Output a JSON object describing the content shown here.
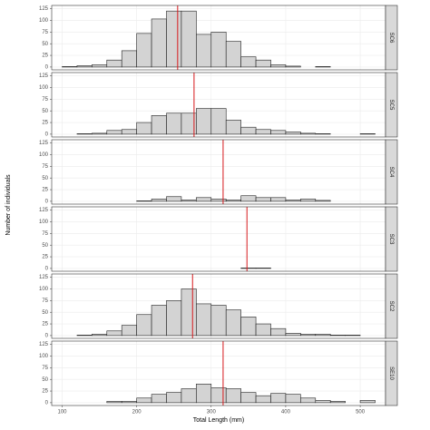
{
  "chart_data": {
    "type": "histogram",
    "xlabel": "Total Length (mm)",
    "ylabel": "Number of individuals",
    "bins": [
      100,
      120,
      140,
      160,
      180,
      200,
      220,
      240,
      260,
      280,
      300,
      320,
      340,
      360,
      380,
      400,
      420,
      440,
      460,
      480,
      500,
      520
    ],
    "xlim": [
      86,
      534
    ],
    "xticks": [
      100,
      200,
      300,
      400,
      500
    ],
    "ylim": [
      -6,
      132
    ],
    "yticks": [
      0,
      25,
      50,
      75,
      100,
      125
    ],
    "grid": true,
    "color": "#d3d3d3",
    "mean_color": "#d7191c",
    "facets": [
      {
        "name": "SC6",
        "values": [
          1,
          3,
          5,
          15,
          35,
          72,
          103,
          120,
          120,
          70,
          75,
          55,
          22,
          15,
          5,
          2,
          0,
          1,
          0,
          0,
          0
        ],
        "mean": 255
      },
      {
        "name": "SC5",
        "values": [
          0,
          1,
          2,
          8,
          10,
          25,
          40,
          45,
          45,
          55,
          55,
          30,
          15,
          10,
          8,
          5,
          2,
          1,
          0,
          0,
          1
        ],
        "mean": 277
      },
      {
        "name": "SC4",
        "values": [
          0,
          0,
          0,
          0,
          0,
          1,
          5,
          10,
          3,
          8,
          5,
          3,
          12,
          8,
          8,
          3,
          5,
          2,
          0,
          0,
          0
        ],
        "mean": 316
      },
      {
        "name": "SC3",
        "values": [
          0,
          0,
          0,
          0,
          0,
          0,
          0,
          0,
          0,
          0,
          0,
          0,
          1,
          1,
          0,
          0,
          0,
          0,
          0,
          0,
          0
        ],
        "mean": 348
      },
      {
        "name": "SC2",
        "values": [
          0,
          1,
          3,
          10,
          22,
          45,
          65,
          75,
          100,
          68,
          65,
          55,
          40,
          25,
          15,
          5,
          3,
          3,
          1,
          1,
          0
        ],
        "mean": 275
      },
      {
        "name": "SE10",
        "values": [
          0,
          0,
          0,
          3,
          3,
          10,
          18,
          22,
          30,
          40,
          32,
          30,
          22,
          15,
          20,
          18,
          10,
          5,
          3,
          0,
          5
        ],
        "mean": 316
      }
    ]
  }
}
